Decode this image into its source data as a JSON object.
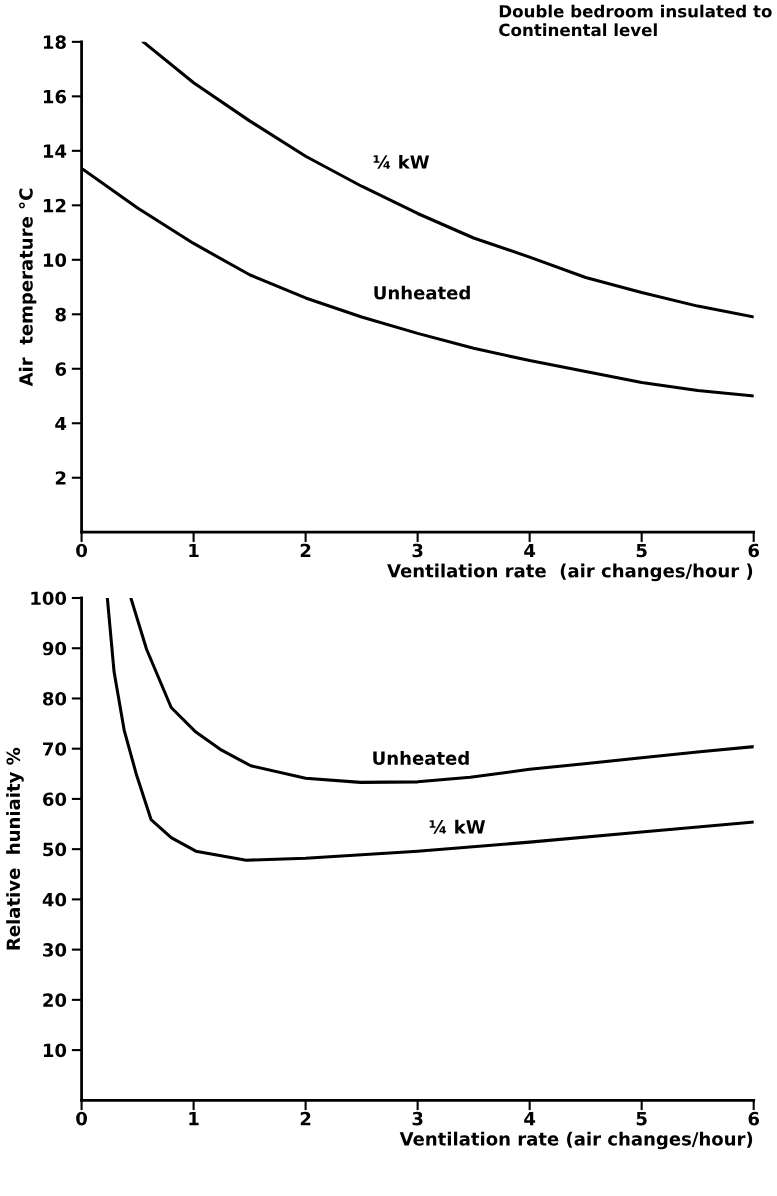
{
  "chart_data": [
    {
      "type": "line",
      "title": "Double bedroom insulated to\nContinental level",
      "xlabel": "Ventilation rate  (air changes/hour )",
      "ylabel": "Air  temperature °C",
      "xlim": [
        0,
        6
      ],
      "xticks": [
        0,
        1,
        2,
        3,
        4,
        5,
        6
      ],
      "ylim": [
        0,
        18
      ],
      "yticks": [
        2,
        4,
        6,
        8,
        10,
        12,
        14,
        16,
        18
      ],
      "series": [
        {
          "name": "¼ kW",
          "color": "#000000",
          "x": [
            0.55,
            1.0,
            1.5,
            2.0,
            2.5,
            3.0,
            3.5,
            4.0,
            4.5,
            5.0,
            5.5,
            6.0
          ],
          "values": [
            18,
            16.5,
            15.1,
            13.8,
            12.7,
            11.7,
            10.8,
            10.1,
            9.35,
            8.8,
            8.3,
            7.9
          ]
        },
        {
          "name": "Unheated",
          "color": "#000000",
          "x": [
            0.02,
            0.5,
            1.0,
            1.5,
            2.0,
            2.5,
            3.0,
            3.5,
            4.0,
            4.5,
            5.0,
            5.5,
            6.0
          ],
          "values": [
            13.3,
            11.9,
            10.6,
            9.45,
            8.6,
            7.9,
            7.3,
            6.75,
            6.3,
            5.9,
            5.5,
            5.2,
            5.0
          ]
        }
      ],
      "legend": false
    },
    {
      "type": "line",
      "xlabel": "Ventilation rate (air changes/hour)",
      "ylabel": "Relative  huniaity %",
      "xlim": [
        0,
        6
      ],
      "xticks": [
        0,
        1,
        2,
        3,
        4,
        5,
        6
      ],
      "ylim": [
        0,
        100
      ],
      "yticks": [
        10,
        20,
        30,
        40,
        50,
        60,
        70,
        80,
        90,
        100
      ],
      "series": [
        {
          "name": "Unheated",
          "color": "#000000",
          "x": [
            0.44,
            0.58,
            0.8,
            1.02,
            1.25,
            1.51,
            2.0,
            2.49,
            3.0,
            3.47,
            4.0,
            4.49,
            5.0,
            5.52,
            6.0
          ],
          "values": [
            100,
            89.8,
            78.2,
            73.3,
            69.7,
            66.6,
            64.1,
            63.3,
            63.4,
            64.3,
            65.9,
            67.0,
            68.2,
            69.4,
            70.4
          ]
        },
        {
          "name": "¼ kW",
          "color": "#000000",
          "x": [
            0.23,
            0.29,
            0.38,
            0.49,
            0.62,
            0.8,
            1.02,
            1.47,
            2.0,
            3.0,
            4.0,
            5.0,
            6.0
          ],
          "values": [
            100,
            85.3,
            73.7,
            64.8,
            55.9,
            52.3,
            49.6,
            47.8,
            48.2,
            49.6,
            51.4,
            53.4,
            55.4
          ]
        }
      ],
      "legend": false
    }
  ]
}
